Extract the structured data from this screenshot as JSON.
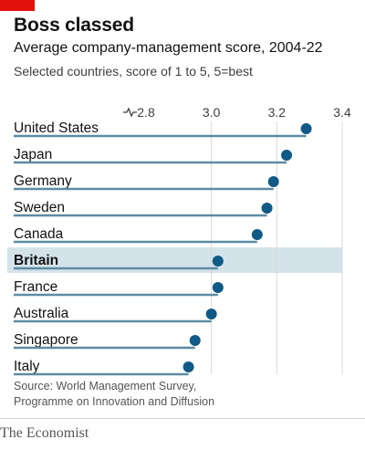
{
  "chart_data": {
    "type": "lollipop",
    "title": "Boss classed",
    "subtitle": "Average company-management score, 2004-22",
    "description": "Selected countries, score of 1 to 5, 5=best",
    "x_ticks": [
      "2.8",
      "3.0",
      "3.2",
      "3.4"
    ],
    "xlim": [
      2.8,
      3.4
    ],
    "axis_break": true,
    "highlight": "Britain",
    "categories": [
      "United States",
      "Japan",
      "Germany",
      "Sweden",
      "Canada",
      "Britain",
      "France",
      "Australia",
      "Singapore",
      "Italy"
    ],
    "values": [
      3.29,
      3.23,
      3.19,
      3.17,
      3.14,
      3.02,
      3.02,
      3.0,
      2.95,
      2.93
    ],
    "source": "Source: World Management Survey,\nProgramme on Innovation and Diffusion",
    "brand": "The Economist",
    "colors": {
      "accent": "#e3120b",
      "line": "#5e8ba3",
      "dot": "#0f5a86",
      "highlight_bg": "#d4e3ea",
      "grid": "#d9d9d9"
    }
  }
}
